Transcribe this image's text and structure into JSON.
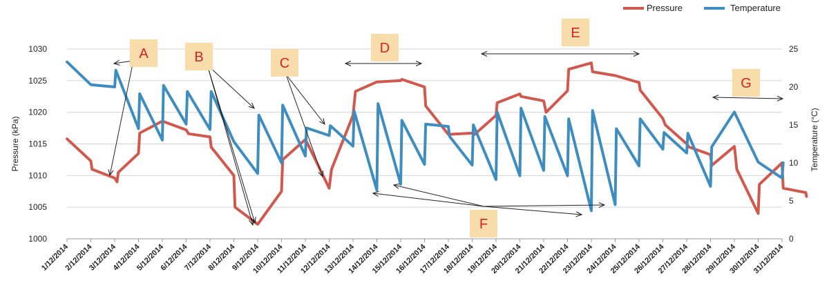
{
  "chart_data": {
    "type": "line",
    "title": "",
    "xlabel": "",
    "categories": [
      "1/12/2014",
      "2/12/2014",
      "3/12/2014",
      "4/12/2014",
      "5/12/2014",
      "6/12/2014",
      "7/12/2014",
      "8/12/2014",
      "9/12/2014",
      "10/12/2014",
      "11/12/2014",
      "12/12/2014",
      "13/12/2014",
      "14/12/2014",
      "15/12/2014",
      "16/12/2014",
      "17/12/2014",
      "18/12/2014",
      "19/12/2014",
      "20/12/2014",
      "21/12/2014",
      "22/12/2014",
      "23/12/2014",
      "24/12/2014",
      "25/12/2014",
      "26/12/2014",
      "27/12/2014",
      "28/12/2014",
      "29/12/2014",
      "30/12/2014",
      "31/12/2014"
    ],
    "y_left": {
      "label": "Pressure (kPa)",
      "min": 1000,
      "max": 1030,
      "ticks": [
        1000,
        1005,
        1010,
        1015,
        1020,
        1025,
        1030
      ]
    },
    "y_right": {
      "label": "Temperature (°C)",
      "min": 0,
      "max": 25,
      "ticks": [
        0,
        5,
        10,
        15,
        20,
        25
      ]
    },
    "grid": true,
    "legend_position": "top-right",
    "series": [
      {
        "name": "Pressure",
        "axis": "left",
        "color": "#d0594f",
        "points": [
          [
            0,
            1015.8
          ],
          [
            1,
            1012.3
          ],
          [
            1.05,
            1011
          ],
          [
            2,
            1009.6
          ],
          [
            2.1,
            1009
          ],
          [
            2.15,
            1010.5
          ],
          [
            3,
            1013.5
          ],
          [
            3.05,
            1016.7
          ],
          [
            4,
            1018.6
          ],
          [
            5,
            1017.2
          ],
          [
            5.1,
            1016.6
          ],
          [
            6,
            1016.1
          ],
          [
            6.05,
            1014.5
          ],
          [
            7,
            1010
          ],
          [
            7.05,
            1005
          ],
          [
            8,
            1002.3
          ],
          [
            8.1,
            1002.8
          ],
          [
            9,
            1007.5
          ],
          [
            9.05,
            1012.5
          ],
          [
            10,
            1015.7
          ],
          [
            10.1,
            1015
          ],
          [
            11,
            1008
          ],
          [
            11.1,
            1011
          ],
          [
            12,
            1019.5
          ],
          [
            12.1,
            1023.3
          ],
          [
            13,
            1024.8
          ],
          [
            14,
            1025
          ],
          [
            14.05,
            1025.2
          ],
          [
            15,
            1024
          ],
          [
            15.05,
            1021
          ],
          [
            16,
            1016.5
          ],
          [
            17,
            1016.7
          ],
          [
            17.1,
            1016.5
          ],
          [
            18,
            1019.5
          ],
          [
            18.05,
            1021.5
          ],
          [
            19,
            1022.9
          ],
          [
            19.05,
            1022.5
          ],
          [
            20,
            1021.8
          ],
          [
            20.1,
            1020
          ],
          [
            21,
            1023.4
          ],
          [
            21.05,
            1026.8
          ],
          [
            22,
            1027.8
          ],
          [
            22.05,
            1026.4
          ],
          [
            23,
            1025.8
          ],
          [
            24,
            1024.7
          ],
          [
            24.05,
            1023.5
          ],
          [
            25,
            1019
          ],
          [
            25.1,
            1018
          ],
          [
            26,
            1015
          ],
          [
            26.1,
            1014.5
          ],
          [
            27,
            1013.3
          ],
          [
            27.05,
            1011.6
          ],
          [
            28,
            1014.6
          ],
          [
            28.05,
            1013
          ],
          [
            28.1,
            1011
          ],
          [
            29,
            1004
          ],
          [
            29.05,
            1008.6
          ],
          [
            30,
            1012
          ],
          [
            30.05,
            1008
          ],
          [
            31,
            1007.3
          ],
          [
            31.03,
            1006.7
          ]
        ]
      },
      {
        "name": "Temperature",
        "axis": "right",
        "color": "#3f8dbf",
        "points": [
          [
            0,
            23.3
          ],
          [
            1,
            20.3
          ],
          [
            2,
            20
          ],
          [
            2.05,
            22.2
          ],
          [
            3,
            14.5
          ],
          [
            3.05,
            19.1
          ],
          [
            4,
            13
          ],
          [
            4.05,
            20.2
          ],
          [
            5,
            15.1
          ],
          [
            5.05,
            19.4
          ],
          [
            6,
            14.4
          ],
          [
            6.05,
            19.4
          ],
          [
            7,
            12.8
          ],
          [
            8,
            8.6
          ],
          [
            8.05,
            16.3
          ],
          [
            9,
            10
          ],
          [
            9.05,
            17.6
          ],
          [
            10,
            10.9
          ],
          [
            10.05,
            14.6
          ],
          [
            11,
            13.6
          ],
          [
            11.05,
            14.9
          ],
          [
            12,
            12.2
          ],
          [
            12.05,
            16.8
          ],
          [
            13,
            6.4
          ],
          [
            13.05,
            17.8
          ],
          [
            14,
            7.2
          ],
          [
            14.05,
            15.6
          ],
          [
            15,
            9.8
          ],
          [
            15.05,
            15.1
          ],
          [
            16,
            14.8
          ],
          [
            16.05,
            13.5
          ],
          [
            17,
            9.7
          ],
          [
            17.05,
            15
          ],
          [
            18,
            7.8
          ],
          [
            18.05,
            16.7
          ],
          [
            19,
            8.3
          ],
          [
            19.05,
            17.2
          ],
          [
            20,
            9
          ],
          [
            20.05,
            16.1
          ],
          [
            21,
            8.3
          ],
          [
            21.05,
            15.8
          ],
          [
            22,
            3.7
          ],
          [
            22.05,
            16.9
          ],
          [
            23,
            4.5
          ],
          [
            23.05,
            14.5
          ],
          [
            24,
            9.6
          ],
          [
            24.05,
            15.8
          ],
          [
            25,
            11.8
          ],
          [
            25.05,
            14
          ],
          [
            26,
            11.3
          ],
          [
            26.05,
            13.9
          ],
          [
            27,
            6.9
          ],
          [
            27.05,
            12.1
          ],
          [
            28,
            16.7
          ],
          [
            29,
            10.1
          ],
          [
            30,
            8
          ],
          [
            30.05,
            10
          ]
        ]
      }
    ],
    "annotations": [
      {
        "label": "A"
      },
      {
        "label": "B"
      },
      {
        "label": "C"
      },
      {
        "label": "D"
      },
      {
        "label": "E"
      },
      {
        "label": "F"
      },
      {
        "label": "G"
      }
    ]
  }
}
